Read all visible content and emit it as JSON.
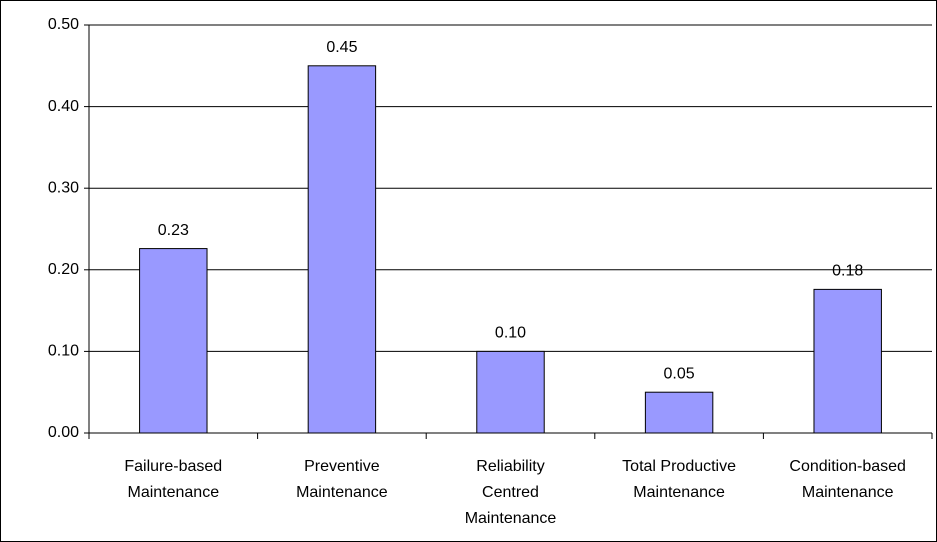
{
  "chart_data": {
    "type": "bar",
    "categories": [
      [
        "Failure-based",
        "Maintenance"
      ],
      [
        "Preventive",
        "Maintenance"
      ],
      [
        "Reliability",
        "Centred",
        "Maintenance"
      ],
      [
        "Total Productive",
        "Maintenance"
      ],
      [
        "Condition-based",
        "Maintenance"
      ]
    ],
    "values": [
      0.226,
      0.45,
      0.1,
      0.05,
      0.176
    ],
    "value_labels": [
      "0.23",
      "0.45",
      "0.10",
      "0.05",
      "0.18"
    ],
    "color": "#9999ff",
    "ylim": [
      0,
      0.5
    ],
    "yticks": [
      {
        "value": 0,
        "label": "0.00"
      },
      {
        "value": 0.1,
        "label": "0.10"
      },
      {
        "value": 0.2,
        "label": "0.20"
      },
      {
        "value": 0.3,
        "label": "0.30"
      },
      {
        "value": 0.4,
        "label": "0.40"
      },
      {
        "value": 0.5,
        "label": "0.50"
      }
    ],
    "grid": true
  }
}
